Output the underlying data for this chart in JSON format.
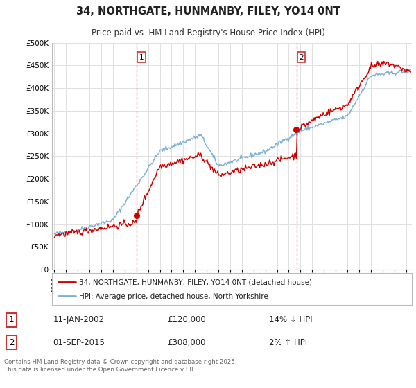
{
  "title": "34, NORTHGATE, HUNMANBY, FILEY, YO14 0NT",
  "subtitle": "Price paid vs. HM Land Registry's House Price Index (HPI)",
  "legend_line1": "34, NORTHGATE, HUNMANBY, FILEY, YO14 0NT (detached house)",
  "legend_line2": "HPI: Average price, detached house, North Yorkshire",
  "footer": "Contains HM Land Registry data © Crown copyright and database right 2025.\nThis data is licensed under the Open Government Licence v3.0.",
  "annotation1_date": "11-JAN-2002",
  "annotation1_price": "£120,000",
  "annotation1_hpi": "14% ↓ HPI",
  "annotation2_date": "01-SEP-2015",
  "annotation2_price": "£308,000",
  "annotation2_hpi": "2% ↑ HPI",
  "red_color": "#cc0000",
  "blue_color": "#7ab0d4",
  "vline_color": "#cc3333",
  "background_color": "#ffffff",
  "grid_color": "#e0e0e0",
  "ylim": [
    0,
    500000
  ],
  "yticks": [
    0,
    50000,
    100000,
    150000,
    200000,
    250000,
    300000,
    350000,
    400000,
    450000,
    500000
  ],
  "x_start_year": 1995,
  "x_end_year": 2025,
  "vline1_year": 2002.04,
  "vline2_year": 2015.67
}
